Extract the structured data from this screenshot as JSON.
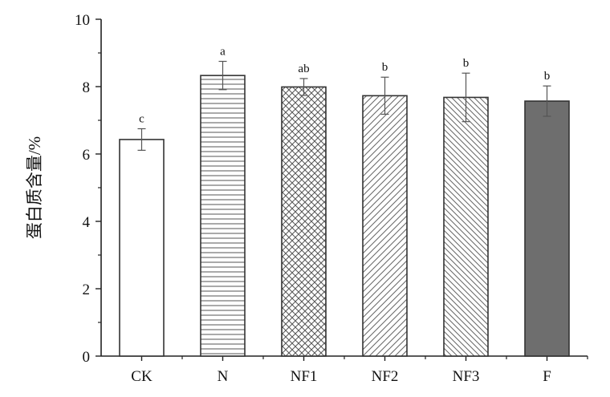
{
  "chart_data": {
    "type": "bar",
    "categories": [
      "CK",
      "N",
      "NF1",
      "NF2",
      "NF3",
      "F"
    ],
    "series": [
      {
        "values": [
          6.43,
          8.33,
          7.99,
          7.73,
          7.68,
          7.57
        ],
        "errors": [
          0.32,
          0.42,
          0.25,
          0.55,
          0.72,
          0.45
        ],
        "significance": [
          "c",
          "a",
          "ab",
          "b",
          "b",
          "b"
        ]
      }
    ],
    "bar_styles": [
      {
        "fill": "white",
        "color": "#444444"
      },
      {
        "fill": "horizontal-lines",
        "color": "#444444"
      },
      {
        "fill": "crosshatch-diagonal",
        "color": "#444444"
      },
      {
        "fill": "diagonal-lines-forward",
        "color": "#444444"
      },
      {
        "fill": "diagonal-lines-backward",
        "color": "#444444"
      },
      {
        "fill": "solid",
        "color": "#6e6e6e"
      }
    ],
    "ylabel": "蛋白质含量/%",
    "xlabel": "",
    "ylim": [
      0,
      10
    ],
    "yticks": [
      "0",
      "2",
      "4",
      "6",
      "8",
      "10"
    ],
    "grid": false
  }
}
